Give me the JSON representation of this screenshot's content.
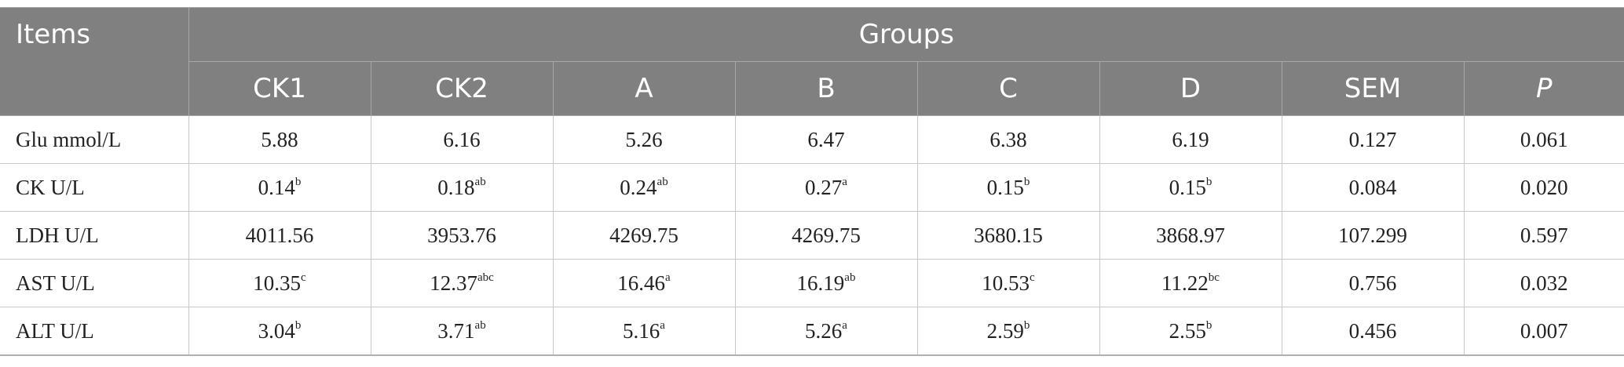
{
  "table": {
    "header": {
      "items_label": "Items",
      "groups_label": "Groups",
      "columns": [
        "CK1",
        "CK2",
        "A",
        "B",
        "C",
        "D",
        "SEM",
        "P"
      ]
    },
    "rows": [
      {
        "item": "Glu mmol/L",
        "cells": [
          {
            "v": "5.88",
            "s": ""
          },
          {
            "v": "6.16",
            "s": ""
          },
          {
            "v": "5.26",
            "s": ""
          },
          {
            "v": "6.47",
            "s": ""
          },
          {
            "v": "6.38",
            "s": ""
          },
          {
            "v": "6.19",
            "s": ""
          },
          {
            "v": "0.127",
            "s": ""
          },
          {
            "v": "0.061",
            "s": ""
          }
        ]
      },
      {
        "item": "CK U/L",
        "cells": [
          {
            "v": "0.14",
            "s": "b"
          },
          {
            "v": "0.18",
            "s": "ab"
          },
          {
            "v": "0.24",
            "s": "ab"
          },
          {
            "v": "0.27",
            "s": "a"
          },
          {
            "v": "0.15",
            "s": "b"
          },
          {
            "v": "0.15",
            "s": "b"
          },
          {
            "v": "0.084",
            "s": ""
          },
          {
            "v": "0.020",
            "s": ""
          }
        ]
      },
      {
        "item": "LDH U/L",
        "cells": [
          {
            "v": "4011.56",
            "s": ""
          },
          {
            "v": "3953.76",
            "s": ""
          },
          {
            "v": "4269.75",
            "s": ""
          },
          {
            "v": "4269.75",
            "s": ""
          },
          {
            "v": "3680.15",
            "s": ""
          },
          {
            "v": "3868.97",
            "s": ""
          },
          {
            "v": "107.299",
            "s": ""
          },
          {
            "v": "0.597",
            "s": ""
          }
        ]
      },
      {
        "item": "AST U/L",
        "cells": [
          {
            "v": "10.35",
            "s": "c"
          },
          {
            "v": "12.37",
            "s": "abc"
          },
          {
            "v": "16.46",
            "s": "a"
          },
          {
            "v": "16.19",
            "s": "ab"
          },
          {
            "v": "10.53",
            "s": "c"
          },
          {
            "v": "11.22",
            "s": "bc"
          },
          {
            "v": "0.756",
            "s": ""
          },
          {
            "v": "0.032",
            "s": ""
          }
        ]
      },
      {
        "item": "ALT U/L",
        "cells": [
          {
            "v": "3.04",
            "s": "b"
          },
          {
            "v": "3.71",
            "s": "ab"
          },
          {
            "v": "5.16",
            "s": "a"
          },
          {
            "v": "5.26",
            "s": "a"
          },
          {
            "v": "2.59",
            "s": "b"
          },
          {
            "v": "2.55",
            "s": "b"
          },
          {
            "v": "0.456",
            "s": ""
          },
          {
            "v": "0.007",
            "s": ""
          }
        ]
      }
    ]
  }
}
